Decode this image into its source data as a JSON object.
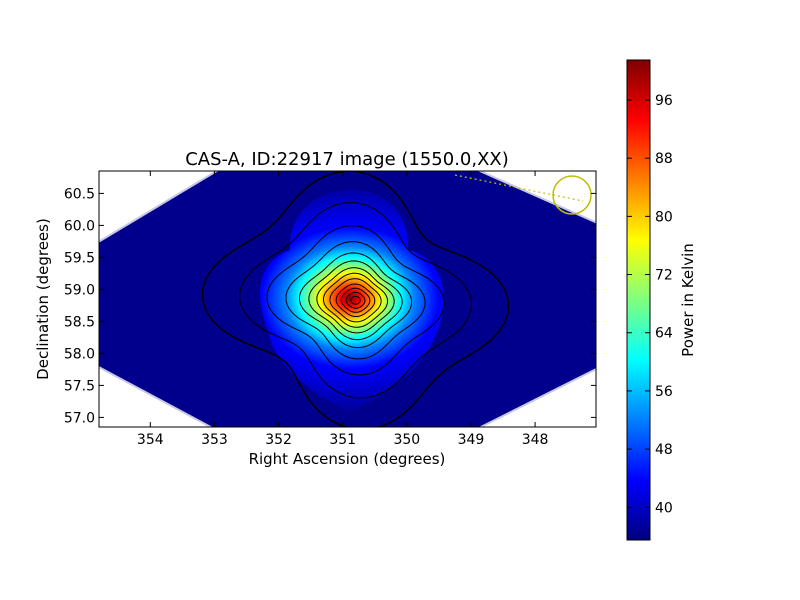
{
  "chart_data": {
    "type": "heatmap",
    "title": "CAS-A, ID:22917 image (1550.0,XX)",
    "xlabel": "Right Ascension (degrees)",
    "ylabel": "Declination (degrees)",
    "xlim": [
      354.8,
      347.05
    ],
    "ylim": [
      56.85,
      60.85
    ],
    "x_ticks": [
      "354",
      "353",
      "352",
      "351",
      "350",
      "349",
      "348"
    ],
    "x_tick_values": [
      354,
      353,
      352,
      351,
      350,
      349,
      348
    ],
    "y_ticks": [
      "57.0",
      "57.5",
      "58.0",
      "58.5",
      "59.0",
      "59.5",
      "60.0",
      "60.5"
    ],
    "y_tick_values": [
      57.0,
      57.5,
      58.0,
      58.5,
      59.0,
      59.5,
      60.0,
      60.5
    ],
    "colorbar": {
      "label": "Power in Kelvin",
      "range": [
        35.5,
        101.5
      ],
      "ticks": [
        "40",
        "48",
        "56",
        "64",
        "72",
        "80",
        "88",
        "96"
      ],
      "tick_values": [
        40,
        48,
        56,
        64,
        72,
        80,
        88,
        96
      ],
      "colormap": "jet"
    },
    "source_peak": {
      "ra": 350.8,
      "dec": 58.83,
      "value": 101
    },
    "background_value": 36,
    "beam_marker": {
      "ra": 347.4,
      "dec": 60.47,
      "color": "#bfbf00"
    },
    "grid": false,
    "legend": "none"
  }
}
